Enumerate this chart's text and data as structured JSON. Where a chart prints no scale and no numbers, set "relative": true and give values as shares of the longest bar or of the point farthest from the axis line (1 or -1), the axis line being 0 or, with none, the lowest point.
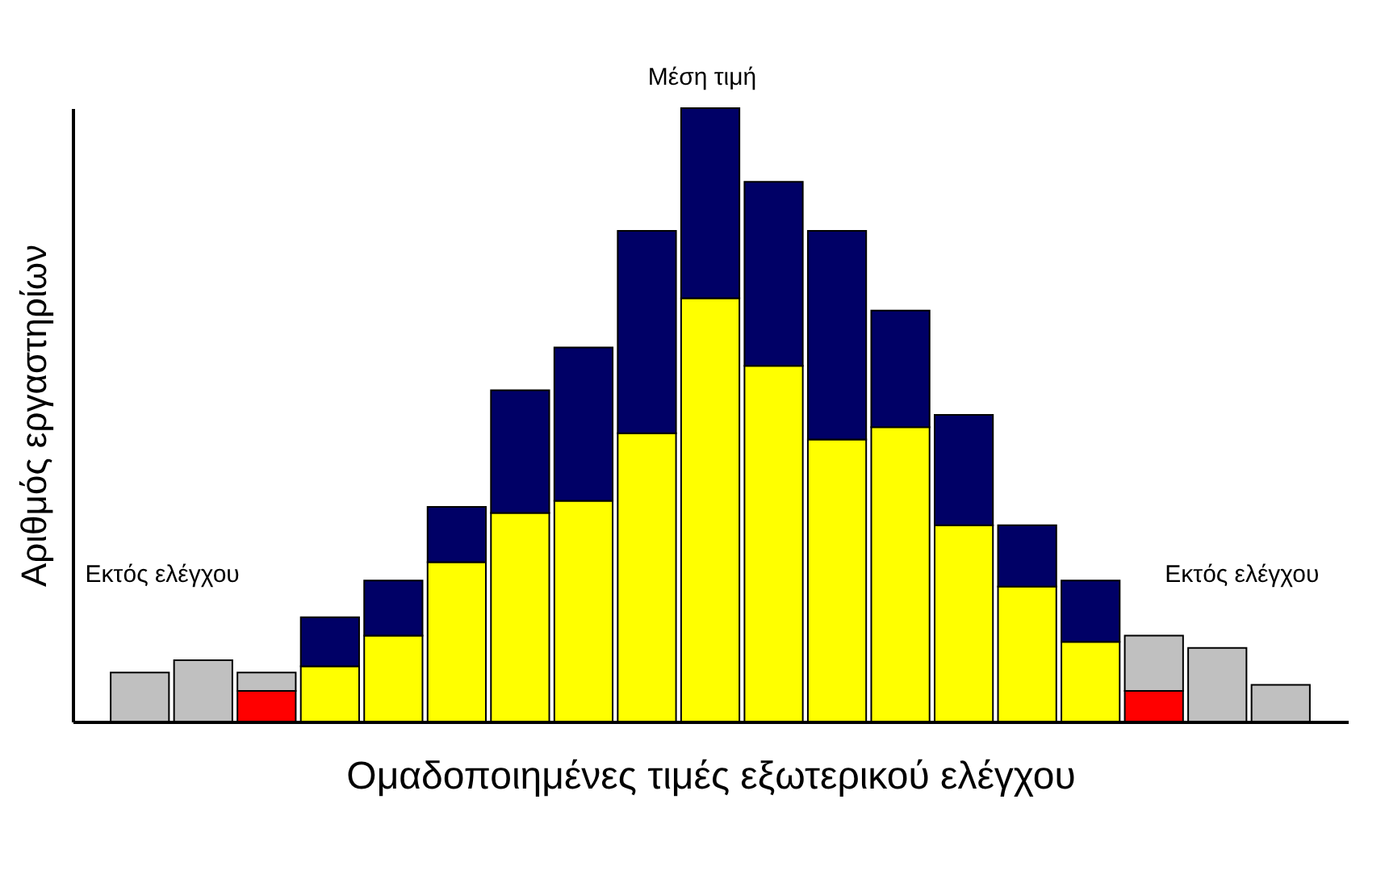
{
  "chart_data": {
    "type": "bar",
    "stacked": true,
    "relative": true,
    "xlabel": "Ομαδοποιημένες τιμές εξωτερικού ελέγχου",
    "ylabel": "Αριθμός εργαστηρίων",
    "tick_labels": false,
    "categories": [
      null,
      null,
      null,
      null,
      null,
      null,
      null,
      null,
      null,
      null,
      null,
      null,
      null,
      null,
      null,
      null,
      null,
      null,
      null
    ],
    "series": [
      {
        "color": "#ff0000",
        "values": [
          null,
          null,
          0.05,
          null,
          null,
          null,
          null,
          null,
          null,
          null,
          null,
          null,
          null,
          null,
          null,
          null,
          0.05,
          null,
          null
        ]
      },
      {
        "color": "#ffff00",
        "values": [
          null,
          null,
          null,
          0.09,
          0.14,
          0.26,
          0.34,
          0.36,
          0.47,
          0.69,
          0.58,
          0.46,
          0.48,
          0.32,
          0.22,
          0.13,
          null,
          null,
          null
        ]
      },
      {
        "color": "#000066",
        "values": [
          null,
          null,
          null,
          0.08,
          0.09,
          0.09,
          0.2,
          0.25,
          0.33,
          0.31,
          0.3,
          0.34,
          0.19,
          0.18,
          0.1,
          0.1,
          null,
          null,
          null
        ]
      },
      {
        "color": "#c0c0c0",
        "values": [
          0.08,
          0.1,
          0.03,
          null,
          null,
          null,
          null,
          null,
          null,
          null,
          null,
          null,
          null,
          null,
          null,
          null,
          0.09,
          0.12,
          0.06
        ]
      }
    ],
    "annotations": [
      "Εκτός ελέγχου",
      "Μέση τιμή",
      "Εκτός ελέγχου"
    ]
  }
}
